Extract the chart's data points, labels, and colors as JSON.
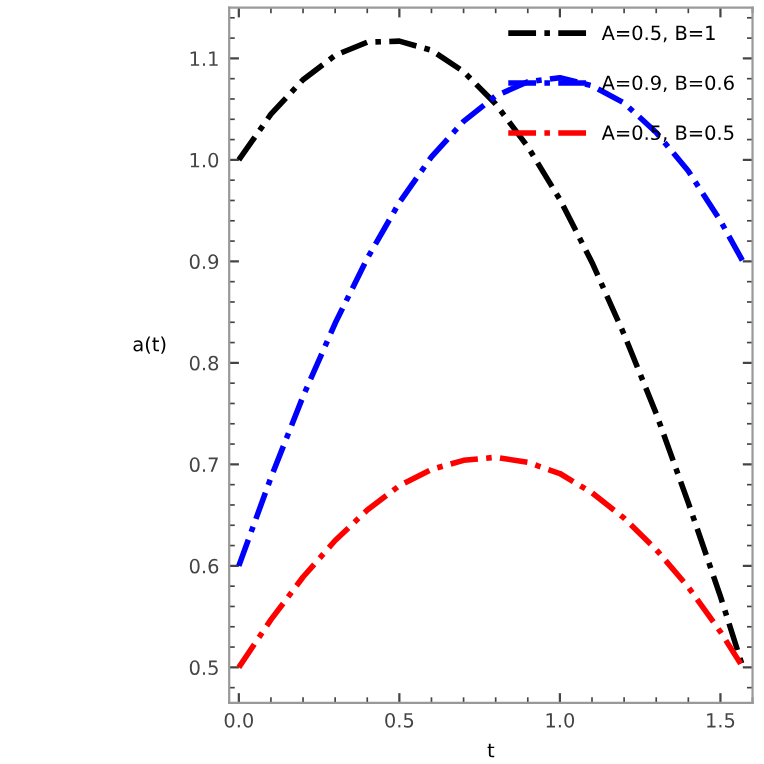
{
  "chart_data": {
    "type": "line",
    "xlabel": "t",
    "ylabel": "a(t)",
    "x": [
      0,
      0.1,
      0.2,
      0.3,
      0.4,
      0.5,
      0.6,
      0.7,
      0.8,
      0.9,
      1.0,
      1.1,
      1.2,
      1.3,
      1.4,
      1.5,
      1.57
    ],
    "series": [
      {
        "name": "A=0.5, B=1",
        "color": "#000000",
        "values": [
          1.0,
          1.045,
          1.079,
          1.103,
          1.116,
          1.117,
          1.108,
          1.087,
          1.055,
          1.013,
          0.961,
          0.899,
          0.828,
          0.75,
          0.662,
          0.57,
          0.5
        ]
      },
      {
        "name": "A=0.9, B=0.6",
        "color": "#0000ff",
        "values": [
          0.6,
          0.687,
          0.767,
          0.839,
          0.903,
          0.958,
          1.003,
          1.038,
          1.063,
          1.077,
          1.081,
          1.073,
          1.056,
          1.027,
          0.989,
          0.94,
          0.9
        ]
      },
      {
        "name": "A=0.5, B=0.5",
        "color": "#ff0000",
        "values": [
          0.5,
          0.547,
          0.589,
          0.625,
          0.655,
          0.679,
          0.695,
          0.704,
          0.707,
          0.702,
          0.691,
          0.672,
          0.647,
          0.616,
          0.579,
          0.535,
          0.5
        ]
      }
    ],
    "xlim": [
      -0.03,
      1.6
    ],
    "ylim": [
      0.465,
      1.15
    ],
    "xticks": [
      {
        "value": 0,
        "label": "0.0"
      },
      0.5,
      {
        "value": 1,
        "label": "1.0"
      },
      1.5
    ],
    "yticks": [
      0.5,
      0.6,
      0.7,
      0.8,
      0.9,
      {
        "value": 1,
        "label": "1.0"
      },
      1.1
    ],
    "line_style": "dashed",
    "marker": "none",
    "grid": false,
    "legend": "top right"
  }
}
